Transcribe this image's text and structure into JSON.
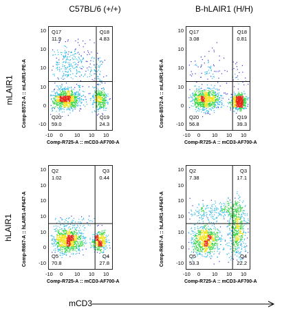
{
  "columns": [
    "C57BL/6 (+/+)",
    "B-hLAIR1 (H/H)"
  ],
  "rows": [
    "mLAIR1",
    "hLAIR1"
  ],
  "bottom_label": "mCD3",
  "chart_data": [
    {
      "type": "scatter",
      "panel": "mLAIR1 / C57BL/6 (+/+)",
      "xlabel": "Comp-R725-A :: mCD3-AF700-A",
      "ylabel": "Comp-B572-A :: mLAIR1-PE-A",
      "xticks": [
        "-10",
        "0",
        "10",
        "10",
        "10"
      ],
      "yticks": [
        "10",
        "10",
        "10",
        "10",
        "0",
        "-10"
      ],
      "quadrants": [
        {
          "name": "Q17",
          "value": "11.9"
        },
        {
          "name": "Q18",
          "value": "4.83"
        },
        {
          "name": "Q19",
          "value": "24.3"
        },
        {
          "name": "Q20",
          "value": "59.0"
        }
      ],
      "clusters": [
        {
          "x": 0.27,
          "y": 0.7,
          "sx": 0.12,
          "sy": 0.05,
          "n": 850
        },
        {
          "x": 0.8,
          "y": 0.7,
          "sx": 0.06,
          "sy": 0.05,
          "n": 330
        },
        {
          "x": 0.33,
          "y": 0.36,
          "sx": 0.17,
          "sy": 0.11,
          "n": 260
        },
        {
          "x": 0.78,
          "y": 0.45,
          "sx": 0.08,
          "sy": 0.1,
          "n": 70
        }
      ]
    },
    {
      "type": "scatter",
      "panel": "mLAIR1 / B-hLAIR1 (H/H)",
      "xlabel": "Comp-R725-A :: mCD3-AF700-A",
      "ylabel": "Comp-B572-A :: mLAIR1-PE-A",
      "xticks": [
        "-10",
        "0",
        "10",
        "10",
        "10"
      ],
      "yticks": [
        "10",
        "10",
        "10",
        "10",
        "0",
        "-10"
      ],
      "quadrants": [
        {
          "name": "Q17",
          "value": "3.08"
        },
        {
          "name": "Q18",
          "value": "0.81"
        },
        {
          "name": "Q19",
          "value": "39.3"
        },
        {
          "name": "Q20",
          "value": "56.8"
        }
      ],
      "clusters": [
        {
          "x": 0.3,
          "y": 0.7,
          "sx": 0.11,
          "sy": 0.05,
          "n": 780
        },
        {
          "x": 0.82,
          "y": 0.72,
          "sx": 0.06,
          "sy": 0.04,
          "n": 560
        },
        {
          "x": 0.32,
          "y": 0.42,
          "sx": 0.14,
          "sy": 0.1,
          "n": 80
        },
        {
          "x": 0.8,
          "y": 0.5,
          "sx": 0.07,
          "sy": 0.09,
          "n": 30
        }
      ]
    },
    {
      "type": "scatter",
      "panel": "hLAIR1 / C57BL/6 (+/+)",
      "xlabel": "Comp-R725-A :: mCD3-AF700-A",
      "ylabel": "Comp-R667-A :: hLAIR1-AF647-A",
      "xticks": [
        "-10",
        "0",
        "10",
        "10",
        "10"
      ],
      "yticks": [
        "10",
        "10",
        "10",
        "10",
        "10",
        "0",
        "-10"
      ],
      "quadrants": [
        {
          "name": "Q2",
          "value": "1.02"
        },
        {
          "name": "Q3",
          "value": "0.44"
        },
        {
          "name": "Q4",
          "value": "27.8"
        },
        {
          "name": "Q5",
          "value": "70.8"
        }
      ],
      "clusters": [
        {
          "x": 0.3,
          "y": 0.72,
          "sx": 0.12,
          "sy": 0.06,
          "n": 900
        },
        {
          "x": 0.8,
          "y": 0.73,
          "sx": 0.06,
          "sy": 0.05,
          "n": 380
        },
        {
          "x": 0.4,
          "y": 0.54,
          "sx": 0.2,
          "sy": 0.03,
          "n": 60
        }
      ]
    },
    {
      "type": "scatter",
      "panel": "hLAIR1 / B-hLAIR1 (H/H)",
      "xlabel": "Comp-R725-A :: mCD3-AF700-A",
      "ylabel": "Comp-R667-A :: hLAIR1-AF647-A",
      "xticks": [
        "-10",
        "0",
        "10",
        "10",
        "10"
      ],
      "yticks": [
        "10",
        "10",
        "10",
        "10",
        "10",
        "0",
        "-10"
      ],
      "quadrants": [
        {
          "name": "Q2",
          "value": "7.38"
        },
        {
          "name": "Q3",
          "value": "17.1"
        },
        {
          "name": "Q4",
          "value": "22.2"
        },
        {
          "name": "Q5",
          "value": "53.3"
        }
      ],
      "clusters": [
        {
          "x": 0.3,
          "y": 0.72,
          "sx": 0.11,
          "sy": 0.07,
          "n": 720
        },
        {
          "x": 0.8,
          "y": 0.62,
          "sx": 0.07,
          "sy": 0.13,
          "n": 520
        },
        {
          "x": 0.35,
          "y": 0.45,
          "sx": 0.18,
          "sy": 0.05,
          "n": 160
        },
        {
          "x": 0.7,
          "y": 0.42,
          "sx": 0.12,
          "sy": 0.05,
          "n": 120
        }
      ]
    }
  ]
}
